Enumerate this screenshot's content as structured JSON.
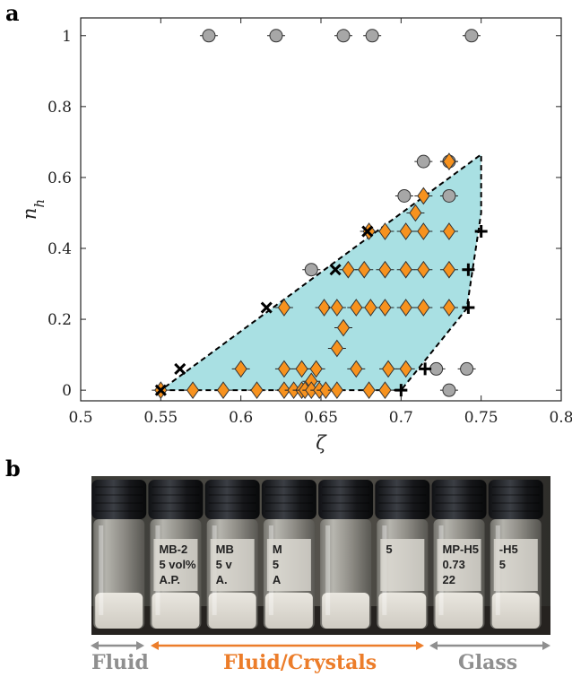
{
  "panels": {
    "a": "a",
    "b": "b"
  },
  "colors": {
    "region": "#a9e0e3",
    "diamond": "#f7921e",
    "circle": "#a7a7a7",
    "fluid": "#8f8f8f",
    "crystal": "#ec7d2a",
    "glass": "#8f8f8f"
  },
  "chart_data": {
    "type": "scatter",
    "xlabel": "ζ",
    "ylabel": "n_h",
    "xlim": [
      0.5,
      0.8
    ],
    "ylim": [
      -0.03,
      1.05
    ],
    "xticks": [
      0.5,
      0.55,
      0.6,
      0.65,
      0.7,
      0.75,
      0.8
    ],
    "xtick_labels": [
      "0.5",
      "0.55",
      "0.6",
      "0.65",
      "0.7",
      "0.75",
      "0.8"
    ],
    "yticks": [
      0,
      0.2,
      0.4,
      0.6,
      0.8,
      1
    ],
    "ytick_labels": [
      "0",
      "0.2",
      "0.4",
      "0.6",
      "0.8",
      "1"
    ],
    "region_boundary": [
      [
        0.55,
        0
      ],
      [
        0.7,
        0
      ],
      [
        0.741,
        0.23
      ],
      [
        0.75,
        0.5
      ],
      [
        0.75,
        0.665
      ],
      [
        0.55,
        0
      ]
    ],
    "series": [
      {
        "marker": "circle",
        "points": [
          [
            0.58,
            1
          ],
          [
            0.622,
            1
          ],
          [
            0.664,
            1
          ],
          [
            0.682,
            1
          ],
          [
            0.744,
            1
          ],
          [
            0.714,
            0.645
          ],
          [
            0.73,
            0.645
          ],
          [
            0.702,
            0.548
          ],
          [
            0.73,
            0.548
          ],
          [
            0.644,
            0.34
          ],
          [
            0.722,
            0.06
          ],
          [
            0.741,
            0.06
          ],
          [
            0.73,
            0
          ]
        ]
      },
      {
        "marker": "diamond",
        "points": [
          [
            0.73,
            0.645
          ],
          [
            0.714,
            0.548
          ],
          [
            0.709,
            0.5
          ],
          [
            0.68,
            0.448
          ],
          [
            0.69,
            0.448
          ],
          [
            0.703,
            0.448
          ],
          [
            0.714,
            0.448
          ],
          [
            0.73,
            0.448
          ],
          [
            0.667,
            0.34
          ],
          [
            0.677,
            0.34
          ],
          [
            0.69,
            0.34
          ],
          [
            0.703,
            0.34
          ],
          [
            0.714,
            0.34
          ],
          [
            0.73,
            0.34
          ],
          [
            0.627,
            0.233
          ],
          [
            0.652,
            0.233
          ],
          [
            0.66,
            0.233
          ],
          [
            0.672,
            0.233
          ],
          [
            0.681,
            0.233
          ],
          [
            0.69,
            0.233
          ],
          [
            0.703,
            0.233
          ],
          [
            0.714,
            0.233
          ],
          [
            0.73,
            0.233
          ],
          [
            0.664,
            0.176
          ],
          [
            0.66,
            0.118
          ],
          [
            0.6,
            0.06
          ],
          [
            0.627,
            0.06
          ],
          [
            0.638,
            0.06
          ],
          [
            0.647,
            0.06
          ],
          [
            0.672,
            0.06
          ],
          [
            0.692,
            0.06
          ],
          [
            0.703,
            0.06
          ],
          [
            0.644,
            0.025
          ],
          [
            0.55,
            0
          ],
          [
            0.57,
            0
          ],
          [
            0.589,
            0
          ],
          [
            0.61,
            0
          ],
          [
            0.627,
            0
          ],
          [
            0.633,
            0
          ],
          [
            0.638,
            0
          ],
          [
            0.64,
            0
          ],
          [
            0.644,
            0
          ],
          [
            0.649,
            0
          ],
          [
            0.653,
            0
          ],
          [
            0.66,
            0
          ],
          [
            0.68,
            0
          ],
          [
            0.69,
            0
          ]
        ]
      },
      {
        "marker": "x",
        "points": [
          [
            0.55,
            0
          ],
          [
            0.562,
            0.06
          ],
          [
            0.616,
            0.233
          ],
          [
            0.659,
            0.34
          ],
          [
            0.679,
            0.448
          ]
        ]
      },
      {
        "marker": "plus",
        "points": [
          [
            0.7,
            0
          ],
          [
            0.715,
            0.06
          ],
          [
            0.742,
            0.233
          ],
          [
            0.742,
            0.34
          ],
          [
            0.75,
            0.448
          ]
        ]
      }
    ]
  },
  "photo": {
    "vial_labels": [
      [
        "",
        "",
        ""
      ],
      [
        "MB-2",
        "5 vol%",
        "A.P."
      ],
      [
        "MB",
        "5 v",
        "A."
      ],
      [
        "M",
        "5",
        "A"
      ],
      [
        "",
        "",
        ""
      ],
      [
        "5",
        "",
        ""
      ],
      [
        "MP-H5",
        "0.73",
        "22"
      ],
      [
        "-H5",
        "5",
        ""
      ]
    ],
    "phases": [
      "Fluid",
      "Fluid/Crystals",
      "Glass"
    ]
  }
}
